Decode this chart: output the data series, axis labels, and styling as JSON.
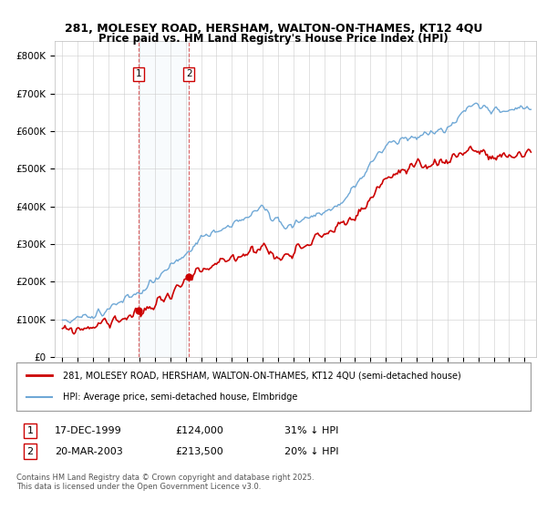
{
  "title": "281, MOLESEY ROAD, HERSHAM, WALTON-ON-THAMES, KT12 4QU",
  "subtitle": "Price paid vs. HM Land Registry's House Price Index (HPI)",
  "ytick_values": [
    0,
    100000,
    200000,
    300000,
    400000,
    500000,
    600000,
    700000,
    800000
  ],
  "ylim": [
    0,
    840000
  ],
  "legend_entries": [
    "281, MOLESEY ROAD, HERSHAM, WALTON-ON-THAMES, KT12 4QU (semi-detached house)",
    "HPI: Average price, semi-detached house, Elmbridge"
  ],
  "sale1_date": "17-DEC-1999",
  "sale1_price": 124000,
  "sale1_hpi": "31% ↓ HPI",
  "sale1_x": 1999.96,
  "sale2_date": "20-MAR-2003",
  "sale2_price": 213500,
  "sale2_hpi": "20% ↓ HPI",
  "sale2_x": 2003.21,
  "footnote": "Contains HM Land Registry data © Crown copyright and database right 2025.\nThis data is licensed under the Open Government Licence v3.0.",
  "red_color": "#cc0000",
  "blue_color": "#6fa8d6",
  "background_color": "#ffffff",
  "grid_color": "#cccccc"
}
